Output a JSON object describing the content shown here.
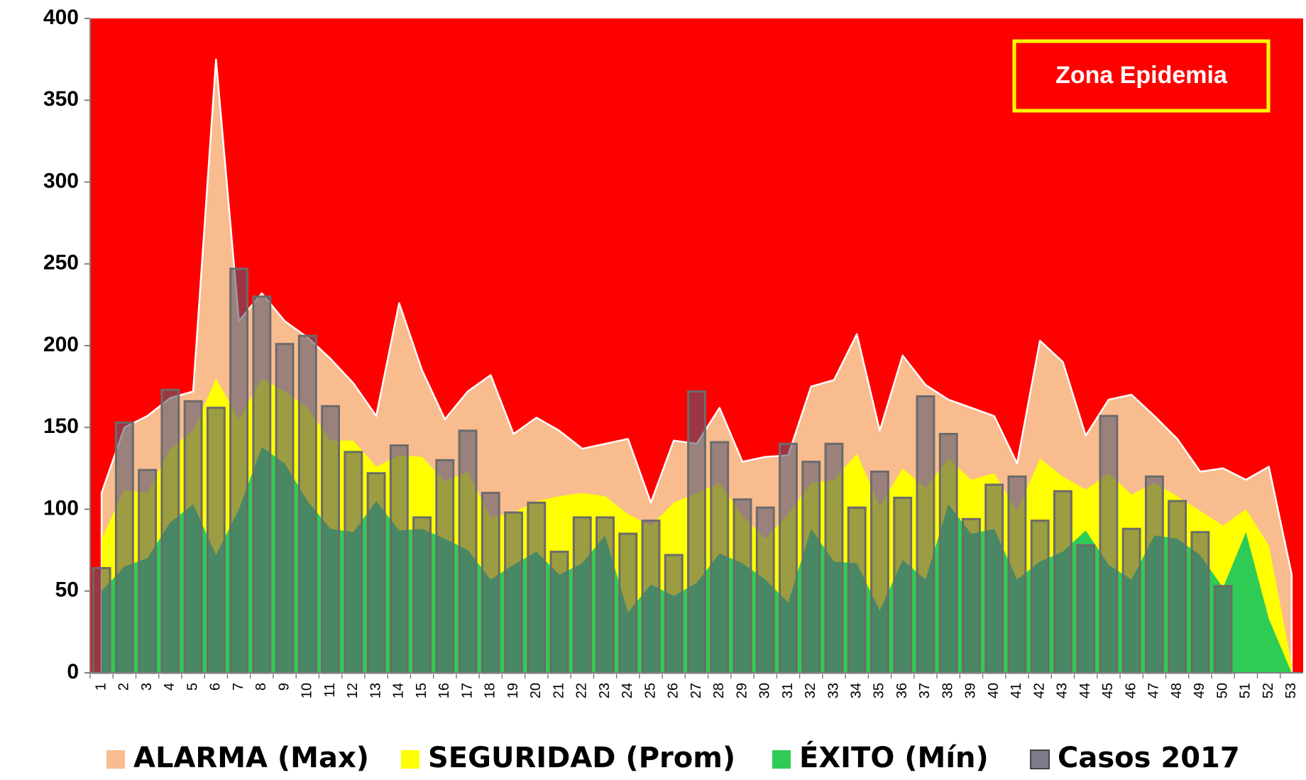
{
  "chart_data": {
    "type": "area",
    "annotation": "Zona Epidemia",
    "plot_color": "#ff0000",
    "categories": [
      "1",
      "2",
      "3",
      "4",
      "5",
      "6",
      "7",
      "8",
      "9",
      "10",
      "11",
      "12",
      "13",
      "14",
      "15",
      "16",
      "17",
      "18",
      "19",
      "20",
      "21",
      "22",
      "23",
      "24",
      "25",
      "26",
      "27",
      "28",
      "29",
      "30",
      "31",
      "32",
      "33",
      "34",
      "35",
      "36",
      "37",
      "38",
      "39",
      "40",
      "41",
      "42",
      "43",
      "44",
      "45",
      "46",
      "47",
      "48",
      "49",
      "50",
      "51",
      "52",
      "53"
    ],
    "series": [
      {
        "name": "ALARMA (Max)",
        "type": "area",
        "color": "#f9bc8f",
        "values": [
          110,
          150,
          157,
          168,
          172,
          375,
          215,
          232,
          215,
          205,
          192,
          177,
          157,
          226,
          185,
          155,
          172,
          182,
          146,
          156,
          148,
          137,
          140,
          143,
          104,
          142,
          140,
          162,
          129,
          132,
          133,
          175,
          179,
          207,
          148,
          194,
          176,
          167,
          162,
          157,
          128,
          203,
          190,
          145,
          167,
          170,
          157,
          143,
          123,
          125,
          118,
          126,
          60
        ]
      },
      {
        "name": "SEGURIDAD (Prom)",
        "type": "area",
        "color": "#ffff00",
        "values": [
          82,
          112,
          110,
          137,
          148,
          180,
          155,
          180,
          172,
          162,
          142,
          142,
          126,
          133,
          132,
          117,
          123,
          95,
          98,
          105,
          108,
          110,
          108,
          97,
          90,
          104,
          110,
          116,
          96,
          82,
          97,
          116,
          118,
          134,
          102,
          125,
          113,
          131,
          118,
          122,
          99,
          131,
          120,
          112,
          122,
          109,
          116,
          108,
          99,
          90,
          100,
          78,
          5
        ]
      },
      {
        "name": "ÉXITO (Mín)",
        "type": "area",
        "color": "#2ecc55",
        "values": [
          50,
          65,
          70,
          92,
          103,
          72,
          100,
          138,
          128,
          105,
          88,
          86,
          105,
          87,
          88,
          82,
          75,
          57,
          66,
          74,
          60,
          67,
          84,
          37,
          54,
          47,
          55,
          73,
          67,
          57,
          43,
          88,
          68,
          67,
          38,
          69,
          57,
          103,
          85,
          88,
          57,
          68,
          74,
          87,
          66,
          57,
          84,
          82,
          72,
          52,
          86,
          33,
          0
        ]
      },
      {
        "name": "Casos 2017",
        "type": "bar",
        "color": "#5a5a6e",
        "values": [
          64,
          153,
          124,
          173,
          166,
          162,
          247,
          230,
          201,
          206,
          163,
          135,
          122,
          139,
          95,
          130,
          148,
          110,
          98,
          104,
          74,
          95,
          95,
          85,
          93,
          72,
          172,
          141,
          106,
          101,
          140,
          129,
          140,
          101,
          123,
          107,
          169,
          146,
          94,
          115,
          120,
          93,
          111,
          78,
          157,
          88,
          120,
          105,
          86,
          53,
          null,
          null,
          null
        ]
      }
    ],
    "ylim": [
      0,
      400
    ],
    "yticks": [
      0,
      50,
      100,
      150,
      200,
      250,
      300,
      350,
      400
    ]
  }
}
